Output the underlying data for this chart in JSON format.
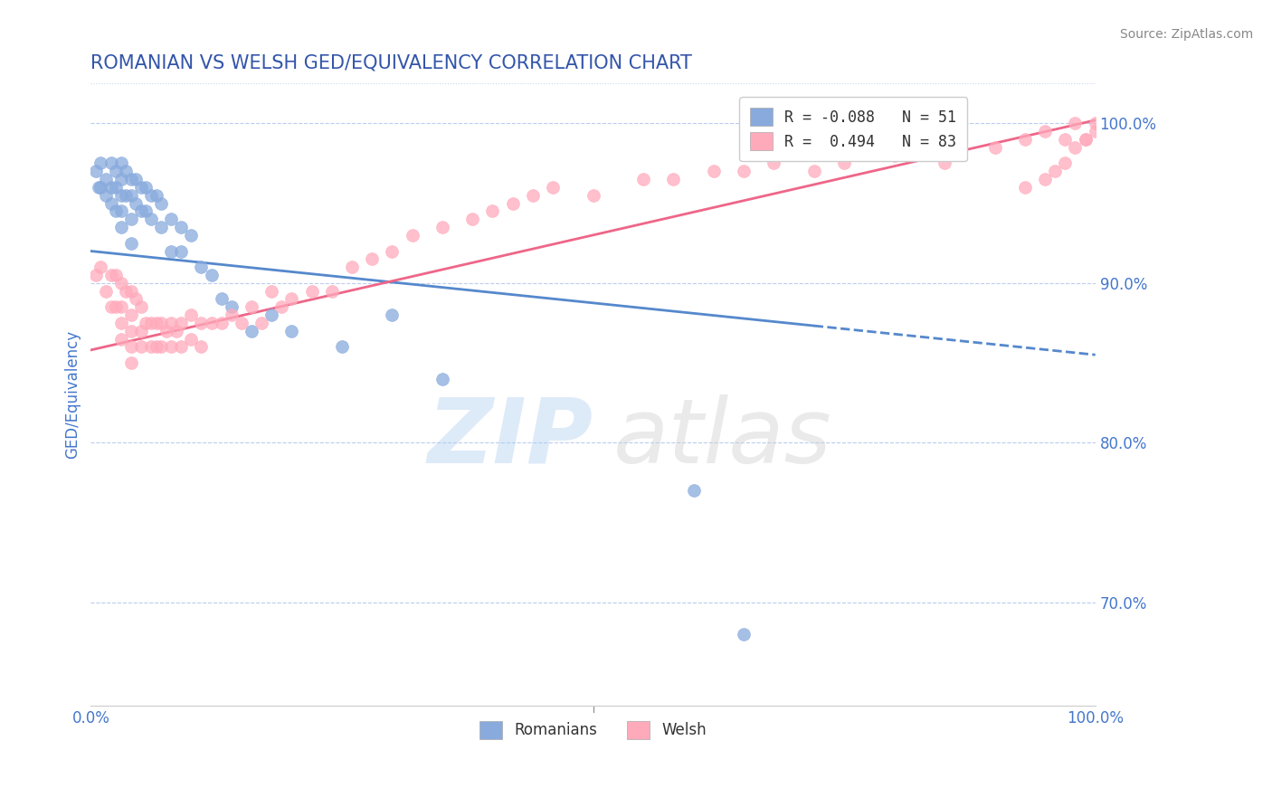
{
  "title": "ROMANIAN VS WELSH GED/EQUIVALENCY CORRELATION CHART",
  "source": "Source: ZipAtlas.com",
  "ylabel": "GED/Equivalency",
  "xlim": [
    0.0,
    1.0
  ],
  "ylim": [
    0.635,
    1.025
  ],
  "blue_R": -0.088,
  "blue_N": 51,
  "pink_R": 0.494,
  "pink_N": 83,
  "blue_color": "#88AADD",
  "pink_color": "#FFAABB",
  "blue_line_color": "#5588CC",
  "pink_line_color": "#EE6688",
  "grid_color": "#BBCCEE",
  "title_color": "#3355AA",
  "axis_color": "#4477CC",
  "ytick_values": [
    0.7,
    0.8,
    0.9,
    1.0
  ],
  "ytick_labels": [
    "70.0%",
    "80.0%",
    "90.0%",
    "100.0%"
  ],
  "blue_scatter_x": [
    0.005,
    0.008,
    0.01,
    0.01,
    0.015,
    0.015,
    0.02,
    0.02,
    0.02,
    0.025,
    0.025,
    0.025,
    0.03,
    0.03,
    0.03,
    0.03,
    0.03,
    0.035,
    0.035,
    0.04,
    0.04,
    0.04,
    0.04,
    0.045,
    0.045,
    0.05,
    0.05,
    0.055,
    0.055,
    0.06,
    0.06,
    0.065,
    0.07,
    0.07,
    0.08,
    0.08,
    0.09,
    0.09,
    0.1,
    0.11,
    0.12,
    0.13,
    0.14,
    0.16,
    0.18,
    0.2,
    0.25,
    0.3,
    0.35,
    0.6,
    0.65
  ],
  "blue_scatter_y": [
    0.97,
    0.96,
    0.975,
    0.96,
    0.965,
    0.955,
    0.975,
    0.96,
    0.95,
    0.97,
    0.96,
    0.945,
    0.975,
    0.965,
    0.955,
    0.945,
    0.935,
    0.97,
    0.955,
    0.965,
    0.955,
    0.94,
    0.925,
    0.965,
    0.95,
    0.96,
    0.945,
    0.96,
    0.945,
    0.955,
    0.94,
    0.955,
    0.95,
    0.935,
    0.94,
    0.92,
    0.935,
    0.92,
    0.93,
    0.91,
    0.905,
    0.89,
    0.885,
    0.87,
    0.88,
    0.87,
    0.86,
    0.88,
    0.84,
    0.77,
    0.68
  ],
  "pink_scatter_x": [
    0.005,
    0.01,
    0.015,
    0.02,
    0.02,
    0.025,
    0.025,
    0.03,
    0.03,
    0.03,
    0.03,
    0.035,
    0.04,
    0.04,
    0.04,
    0.04,
    0.04,
    0.045,
    0.05,
    0.05,
    0.05,
    0.055,
    0.06,
    0.06,
    0.065,
    0.065,
    0.07,
    0.07,
    0.075,
    0.08,
    0.08,
    0.085,
    0.09,
    0.09,
    0.1,
    0.1,
    0.11,
    0.11,
    0.12,
    0.13,
    0.14,
    0.15,
    0.16,
    0.17,
    0.18,
    0.19,
    0.2,
    0.22,
    0.24,
    0.26,
    0.28,
    0.3,
    0.32,
    0.35,
    0.38,
    0.4,
    0.42,
    0.44,
    0.46,
    0.5,
    0.55,
    0.58,
    0.62,
    0.65,
    0.68,
    0.72,
    0.75,
    0.8,
    0.85,
    0.9,
    0.93,
    0.95,
    0.97,
    0.98,
    0.99,
    1.0,
    1.0,
    0.99,
    0.98,
    0.97,
    0.96,
    0.95,
    0.93
  ],
  "pink_scatter_y": [
    0.905,
    0.91,
    0.895,
    0.905,
    0.885,
    0.905,
    0.885,
    0.9,
    0.885,
    0.875,
    0.865,
    0.895,
    0.895,
    0.88,
    0.87,
    0.86,
    0.85,
    0.89,
    0.885,
    0.87,
    0.86,
    0.875,
    0.875,
    0.86,
    0.875,
    0.86,
    0.875,
    0.86,
    0.87,
    0.875,
    0.86,
    0.87,
    0.875,
    0.86,
    0.88,
    0.865,
    0.875,
    0.86,
    0.875,
    0.875,
    0.88,
    0.875,
    0.885,
    0.875,
    0.895,
    0.885,
    0.89,
    0.895,
    0.895,
    0.91,
    0.915,
    0.92,
    0.93,
    0.935,
    0.94,
    0.945,
    0.95,
    0.955,
    0.96,
    0.955,
    0.965,
    0.965,
    0.97,
    0.97,
    0.975,
    0.97,
    0.975,
    0.98,
    0.975,
    0.985,
    0.99,
    0.995,
    0.99,
    1.0,
    0.99,
    1.0,
    0.995,
    0.99,
    0.985,
    0.975,
    0.97,
    0.965,
    0.96
  ]
}
